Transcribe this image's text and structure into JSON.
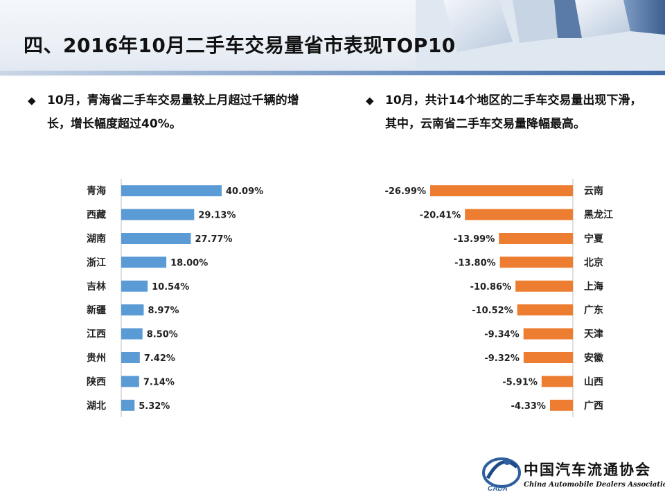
{
  "slide": {
    "title": "四、2016年10月二手车交易量省市表现TOP10"
  },
  "bullets": {
    "left": "10月，青海省二手车交易量较上月超过千辆的增长，增长幅度超过40%。",
    "right": "10月，共计14个地区的二手车交易量出现下滑，其中，云南省二手车交易量降幅最高。"
  },
  "colors": {
    "increase_bar": "#5b9bd5",
    "decrease_bar": "#ed7d31",
    "header_accent": "#3e6aa6"
  },
  "chart_data": [
    {
      "type": "bar",
      "orientation": "horizontal",
      "categories": [
        "青海",
        "西藏",
        "湖南",
        "浙江",
        "吉林",
        "新疆",
        "江西",
        "贵州",
        "陕西",
        "湖北"
      ],
      "values": [
        40.09,
        29.13,
        27.77,
        18.0,
        10.54,
        8.97,
        8.5,
        7.42,
        7.14,
        5.32
      ],
      "value_labels": [
        "40.09%",
        "29.13%",
        "27.77%",
        "18.00%",
        "10.54%",
        "8.97%",
        "8.50%",
        "7.42%",
        "7.14%",
        "5.32%"
      ],
      "label_side": "left",
      "grid": false
    },
    {
      "type": "bar",
      "orientation": "horizontal",
      "categories": [
        "云南",
        "黑龙江",
        "宁夏",
        "北京",
        "上海",
        "广东",
        "天津",
        "安徽",
        "山西",
        "广西"
      ],
      "values": [
        -26.99,
        -20.41,
        -13.99,
        -13.8,
        -10.86,
        -10.52,
        -9.34,
        -9.32,
        -5.91,
        -4.33
      ],
      "value_labels": [
        "-26.99%",
        "-20.41%",
        "-13.99%",
        "-13.80%",
        "-10.86%",
        "-10.52%",
        "-9.34%",
        "-9.32%",
        "-5.91%",
        "-4.33%"
      ],
      "label_side": "right",
      "grid": false
    }
  ],
  "logo": {
    "name_cn": "中国汽车流通协会",
    "name_en": "China Automobile Dealers Association",
    "abbr": "CADA"
  }
}
